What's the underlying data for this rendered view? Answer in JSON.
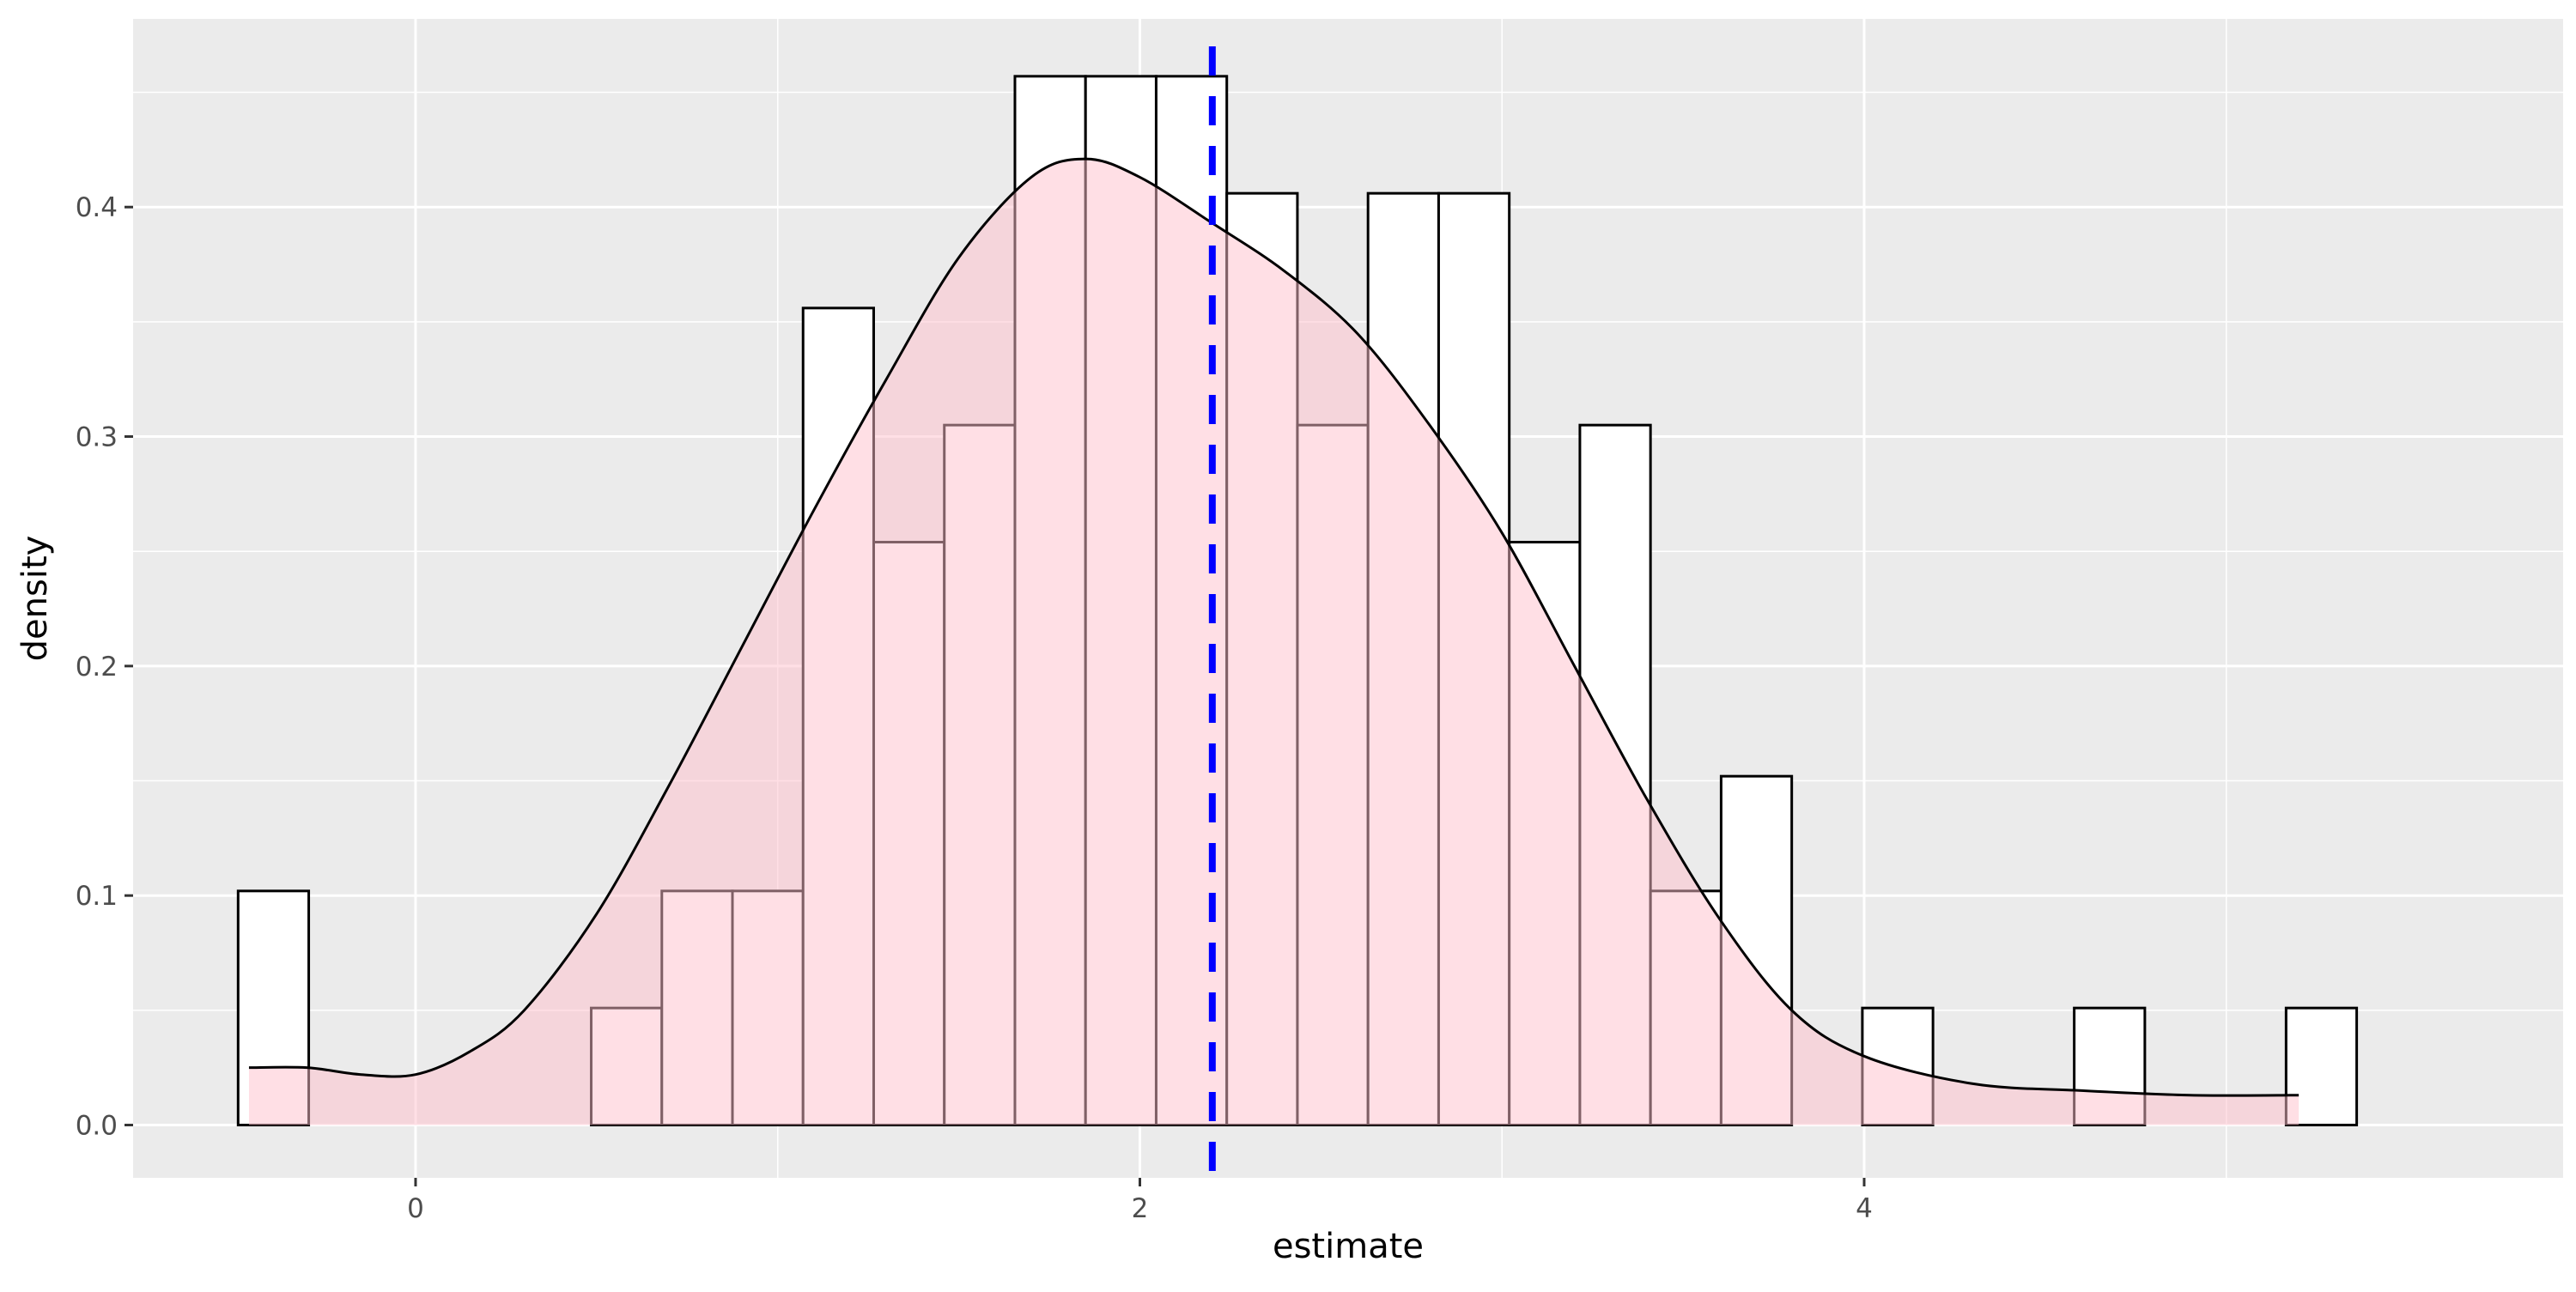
{
  "chart_data": {
    "type": "bar",
    "title": "",
    "xlabel": "estimate",
    "ylabel": "density",
    "xlim": [
      -0.78,
      5.93
    ],
    "ylim": [
      -0.023,
      0.482
    ],
    "x_ticks": [
      0,
      2,
      4
    ],
    "x_tick_labels": [
      "0",
      "2",
      "4"
    ],
    "y_ticks": [
      0.0,
      0.1,
      0.2,
      0.3,
      0.4
    ],
    "y_tick_labels": [
      "0.0",
      "0.1",
      "0.2",
      "0.3",
      "0.4"
    ],
    "grid": true,
    "legend": "none",
    "histogram": {
      "bin_start": -0.49,
      "bin_width": 0.195,
      "values": [
        0.102,
        0,
        0,
        0,
        0,
        0.051,
        0.102,
        0.102,
        0.356,
        0.254,
        0.305,
        0.457,
        0.457,
        0.457,
        0.406,
        0.305,
        0.406,
        0.406,
        0.254,
        0.305,
        0.102,
        0.152,
        0,
        0.051,
        0,
        0,
        0.051,
        0,
        0,
        0.051
      ]
    },
    "density": {
      "x": [
        -0.46,
        -0.3,
        -0.15,
        0.0,
        0.15,
        0.3,
        0.5,
        0.7,
        0.9,
        1.1,
        1.3,
        1.5,
        1.7,
        1.85,
        2.0,
        2.2,
        2.4,
        2.6,
        2.8,
        3.0,
        3.2,
        3.4,
        3.6,
        3.8,
        4.0,
        4.3,
        4.6,
        4.9,
        5.2
      ],
      "y": [
        0.025,
        0.025,
        0.022,
        0.022,
        0.032,
        0.05,
        0.092,
        0.148,
        0.208,
        0.268,
        0.325,
        0.378,
        0.413,
        0.421,
        0.413,
        0.393,
        0.372,
        0.345,
        0.305,
        0.258,
        0.2,
        0.142,
        0.09,
        0.05,
        0.03,
        0.018,
        0.015,
        0.013,
        0.013
      ]
    },
    "vline": {
      "x": 2.2,
      "style": "dashed"
    },
    "colors": {
      "panel_bg": "#ebebeb",
      "grid": "#ffffff",
      "bar_fill": "#ffffff",
      "bar_stroke": "#000000",
      "density_fill": "#ffc0cb",
      "density_fill_opacity": 0.5,
      "density_stroke": "#000000",
      "vline": "#0000ff"
    }
  }
}
